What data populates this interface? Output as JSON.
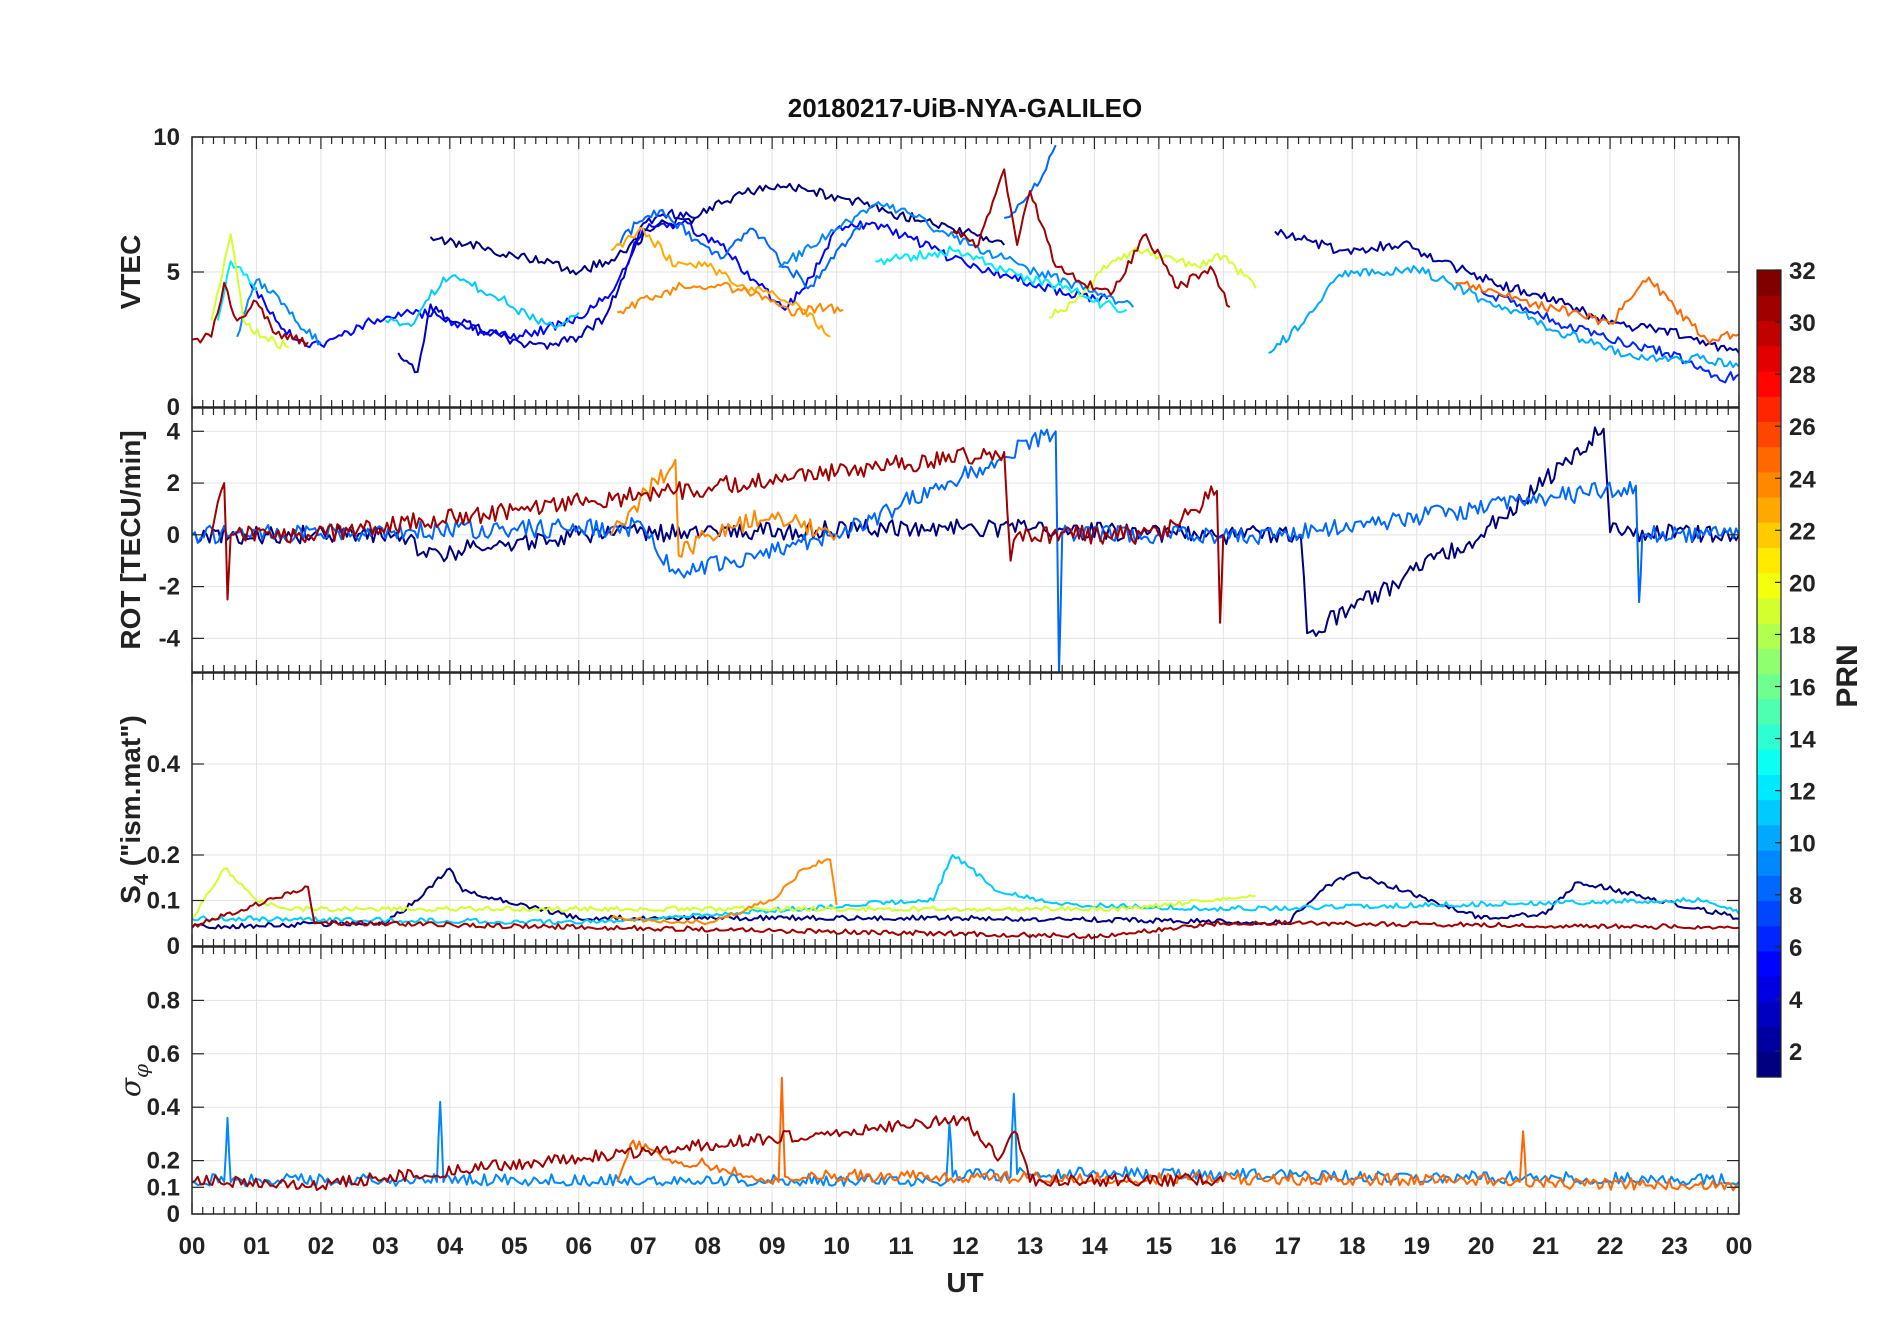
{
  "chart_data": {
    "type": "line",
    "title": "20180217-UiB-NYA-GALILEO",
    "xlabel": "UT",
    "x_ticks": [
      "00",
      "01",
      "02",
      "03",
      "04",
      "05",
      "06",
      "07",
      "08",
      "09",
      "10",
      "11",
      "12",
      "13",
      "14",
      "15",
      "16",
      "17",
      "18",
      "19",
      "20",
      "21",
      "22",
      "23",
      "00"
    ],
    "xlim": [
      0,
      24
    ],
    "colorbar": {
      "label": "PRN",
      "range": [
        1,
        32
      ],
      "ticks": [
        "2",
        "4",
        "6",
        "8",
        "10",
        "12",
        "14",
        "16",
        "18",
        "20",
        "22",
        "24",
        "26",
        "28",
        "30",
        "32"
      ],
      "colormap": "jet"
    },
    "panels": [
      {
        "name": "vtec",
        "ylabel": "VTEC",
        "ylim": [
          0,
          10
        ],
        "y_ticks": [
          0,
          5,
          10
        ],
        "y_tick_labels": [
          "0",
          "5",
          "10"
        ],
        "series": [
          {
            "prn": 1,
            "x": [
              3.7,
              4.5,
              5.2,
              6.0,
              6.6,
              7.2,
              7.8,
              8.4,
              8.9,
              9.6,
              10.2,
              10.8,
              11.4,
              12.0,
              12.6
            ],
            "y": [
              6.3,
              5.9,
              5.5,
              5.0,
              5.6,
              6.7,
              7.0,
              7.8,
              8.2,
              8.0,
              7.7,
              7.2,
              6.9,
              6.5,
              6.0
            ]
          },
          {
            "prn": 2,
            "x": [
              16.8,
              17.3,
              17.8,
              18.3,
              18.8,
              19.3,
              19.8,
              20.3,
              20.8,
              21.3,
              21.8,
              22.3,
              22.8,
              23.3,
              24.0
            ],
            "y": [
              6.5,
              6.2,
              5.8,
              5.9,
              6.1,
              5.4,
              5.0,
              4.5,
              4.2,
              3.8,
              3.3,
              3.0,
              2.9,
              2.5,
              2.0
            ]
          },
          {
            "prn": 3,
            "x": [
              3.2,
              3.5,
              3.7,
              4.0,
              4.4,
              4.8,
              5.2,
              5.6,
              6.0,
              6.4,
              6.7,
              7.0,
              7.4,
              7.8
            ],
            "y": [
              2.0,
              1.3,
              3.8,
              3.2,
              3.0,
              2.6,
              2.3,
              2.3,
              2.6,
              3.3,
              4.8,
              6.8,
              7.2,
              7.0
            ]
          },
          {
            "prn": 5,
            "x": [
              0.9,
              1.3,
              1.6,
              2.0,
              2.6,
              3.2,
              3.8,
              4.3,
              4.9,
              5.5,
              6.0,
              6.5,
              7.0,
              7.6,
              8.2,
              8.8,
              9.2,
              9.6,
              10.0,
              10.6,
              11.2,
              11.8,
              12.4,
              13.0,
              13.6,
              14.2
            ],
            "y": [
              4.6,
              3.2,
              2.5,
              2.3,
              3.0,
              3.5,
              3.4,
              2.9,
              2.6,
              2.9,
              3.3,
              4.2,
              6.6,
              6.8,
              6.0,
              4.5,
              3.6,
              4.8,
              6.6,
              6.8,
              6.2,
              5.5,
              5.0,
              4.6,
              4.2,
              4.0
            ]
          },
          {
            "prn": 6,
            "x": [
              20.0,
              20.6,
              21.2,
              21.8,
              22.4,
              22.9,
              23.4,
              23.7,
              24.0
            ],
            "y": [
              4.3,
              3.8,
              3.1,
              2.7,
              2.3,
              2.0,
              1.5,
              1.0,
              1.2
            ]
          },
          {
            "prn": 8,
            "x": [
              6.6,
              6.9,
              7.3,
              7.8,
              8.2,
              8.7,
              9.2,
              9.6,
              10.0,
              10.4
            ],
            "y": [
              6.0,
              6.8,
              7.3,
              6.2,
              5.5,
              6.6,
              5.2,
              4.5,
              5.8,
              6.8
            ]
          },
          {
            "prn": 8,
            "x": [
              12.6,
              12.9,
              13.2,
              13.4
            ],
            "y": [
              7.0,
              7.6,
              8.6,
              9.7
            ]
          },
          {
            "prn": 9,
            "x": [
              9.1,
              9.6,
              10.1,
              10.6,
              11.1,
              11.6,
              12.1,
              12.6,
              13.1,
              13.6,
              14.1,
              14.6
            ],
            "y": [
              5.2,
              5.9,
              6.8,
              7.5,
              7.2,
              6.5,
              6.0,
              5.5,
              5.0,
              4.6,
              4.2,
              3.7
            ]
          },
          {
            "prn": 9,
            "x": [
              0.7,
              1.0,
              1.3,
              1.6,
              2.0
            ],
            "y": [
              2.6,
              4.7,
              4.2,
              3.2,
              2.4
            ]
          },
          {
            "prn": 10,
            "x": [
              16.7,
              17.2,
              17.8,
              18.4,
              19.0,
              19.5,
              20.0,
              20.6,
              21.2,
              21.8,
              22.4,
              22.9,
              23.4,
              24.0
            ],
            "y": [
              2.0,
              3.0,
              4.9,
              5.0,
              5.1,
              4.6,
              4.0,
              3.5,
              2.8,
              2.4,
              1.8,
              1.7,
              1.8,
              1.5
            ]
          },
          {
            "prn": 11,
            "x": [
              3.0,
              3.4,
              3.9,
              4.3,
              4.8,
              5.2,
              5.6,
              6.0
            ],
            "y": [
              3.2,
              3.0,
              4.8,
              4.6,
              4.0,
              3.4,
              3.0,
              3.5
            ]
          },
          {
            "prn": 12,
            "x": [
              0.4,
              0.6,
              0.8,
              1.0
            ],
            "y": [
              3.2,
              5.4,
              4.9,
              4.3
            ]
          },
          {
            "prn": 12,
            "x": [
              10.6,
              11.2,
              11.8,
              12.4,
              13.0,
              13.6,
              14.0,
              14.5
            ],
            "y": [
              5.4,
              5.6,
              5.8,
              5.3,
              4.7,
              4.4,
              3.9,
              3.6
            ]
          },
          {
            "prn": 19,
            "x": [
              0.3,
              0.6,
              0.8,
              1.1,
              1.5
            ],
            "y": [
              3.2,
              6.4,
              3.2,
              2.6,
              2.2
            ]
          },
          {
            "prn": 19,
            "x": [
              13.3,
              13.7,
              14.1,
              14.6,
              15.1,
              15.6,
              16.0,
              16.5
            ],
            "y": [
              3.3,
              3.9,
              5.0,
              5.8,
              5.6,
              5.2,
              5.6,
              4.4
            ]
          },
          {
            "prn": 23,
            "x": [
              6.5,
              7.0,
              7.5,
              8.0,
              8.5,
              9.0,
              9.5,
              9.9
            ],
            "y": [
              5.8,
              6.6,
              5.2,
              5.2,
              4.5,
              4.3,
              3.6,
              2.6
            ]
          },
          {
            "prn": 24,
            "x": [
              6.6,
              7.1,
              7.6,
              8.2,
              8.8,
              9.3,
              9.7,
              10.1
            ],
            "y": [
              3.5,
              4.0,
              4.5,
              4.5,
              4.2,
              3.4,
              3.7,
              3.6
            ]
          },
          {
            "prn": 25,
            "x": [
              19.6,
              20.2,
              20.8,
              21.4,
              22.0,
              22.6,
              23.0,
              23.5,
              24.0
            ],
            "y": [
              4.6,
              4.3,
              3.8,
              3.5,
              3.1,
              4.8,
              3.7,
              2.5,
              2.7
            ]
          },
          {
            "prn": 31,
            "x": [
              0.0,
              0.3,
              0.5,
              0.7,
              1.0,
              1.3,
              1.8
            ],
            "y": [
              2.5,
              2.6,
              4.6,
              3.2,
              3.9,
              2.7,
              2.4
            ]
          },
          {
            "prn": 31,
            "x": [
              11.8,
              12.2,
              12.6,
              12.8,
              13.0,
              13.4,
              13.8,
              14.3,
              14.8,
              15.3,
              15.8,
              16.1
            ],
            "y": [
              6.5,
              6.0,
              8.8,
              6.0,
              8.0,
              5.2,
              4.6,
              4.3,
              6.4,
              4.4,
              5.2,
              3.7
            ]
          }
        ]
      },
      {
        "name": "rot",
        "ylabel": "ROT [TECU/min]",
        "ylim": [
          -5.3,
          4.9
        ],
        "y_ticks": [
          -4,
          -2,
          0,
          2,
          4
        ],
        "y_tick_labels": [
          "-4",
          "-2",
          "0",
          "2",
          "4"
        ],
        "series": [
          {
            "prn": 1,
            "x": [
              0.0,
              3.4,
              3.5,
              6.0,
              12.0,
              16.0,
              17.2,
              17.3,
              20.0,
              21.9,
              22.0,
              24.0
            ],
            "y": [
              0.0,
              0.0,
              -0.8,
              0.0,
              0.3,
              0.0,
              0.0,
              -3.8,
              0.0,
              4.1,
              0.1,
              0.0
            ]
          },
          {
            "prn": 8,
            "x": [
              0.0,
              7.0,
              7.5,
              10.0,
              13.4,
              13.45,
              13.5,
              17.0,
              22.4,
              22.45,
              22.5,
              24.0
            ],
            "y": [
              0.0,
              0.3,
              -1.5,
              0.0,
              4.0,
              -5.3,
              0.0,
              0.0,
              1.9,
              -2.6,
              0.0,
              0.0
            ]
          },
          {
            "prn": 24,
            "x": [
              6.5,
              7.5,
              7.55,
              8.0,
              9.0,
              10.0
            ],
            "y": [
              0.0,
              2.9,
              -0.8,
              0.0,
              0.8,
              0.0
            ]
          },
          {
            "prn": 31,
            "x": [
              0.3,
              0.5,
              0.55,
              0.6,
              1.8,
              12.6,
              12.7,
              12.8,
              15.0,
              15.9,
              15.95,
              16.0
            ],
            "y": [
              0.0,
              2.0,
              -2.5,
              0.0,
              0.0,
              3.2,
              -1.0,
              0.0,
              0.0,
              1.7,
              -3.4,
              0.0
            ]
          }
        ]
      },
      {
        "name": "s4",
        "ylabel": "S4 (\"ism.mat\")",
        "ylim": [
          0,
          0.6
        ],
        "y_ticks": [
          0,
          0.1,
          0.2,
          0.4
        ],
        "y_tick_labels": [
          "0",
          "0.1",
          "0.2",
          "0.4"
        ],
        "series": [
          {
            "prn": 1,
            "x": [
              0.0,
              3.0,
              3.5,
              4.0,
              4.2,
              6.0,
              12.0,
              17.0,
              17.5,
              18.0,
              20.0,
              21.0,
              21.5,
              24.0
            ],
            "y": [
              0.04,
              0.05,
              0.1,
              0.17,
              0.12,
              0.06,
              0.06,
              0.05,
              0.12,
              0.16,
              0.06,
              0.07,
              0.14,
              0.06
            ]
          },
          {
            "prn": 11,
            "x": [
              0.0,
              6.0,
              11.5,
              11.8,
              12.5,
              13.5,
              16.0,
              23.5,
              24.0
            ],
            "y": [
              0.06,
              0.05,
              0.1,
              0.2,
              0.12,
              0.09,
              0.08,
              0.1,
              0.07
            ]
          },
          {
            "prn": 19,
            "x": [
              0.0,
              0.5,
              1.0,
              1.5,
              14.5,
              16.5
            ],
            "y": [
              0.06,
              0.17,
              0.1,
              0.08,
              0.08,
              0.11
            ]
          },
          {
            "prn": 24,
            "x": [
              6.5,
              8.0,
              9.0,
              9.5,
              9.9,
              10.0
            ],
            "y": [
              0.06,
              0.05,
              0.1,
              0.17,
              0.19,
              0.09
            ]
          },
          {
            "prn": 31,
            "x": [
              0.0,
              1.8,
              1.9,
              6.0,
              14.0,
              16.0,
              24.0
            ],
            "y": [
              0.04,
              0.13,
              0.05,
              0.04,
              0.02,
              0.05,
              0.04
            ]
          }
        ]
      },
      {
        "name": "sigma_phi",
        "ylabel": "σφ",
        "ylim": [
          0,
          1.0
        ],
        "y_ticks": [
          0,
          0.1,
          0.2,
          0.4,
          0.6,
          0.8
        ],
        "y_tick_labels": [
          "0",
          "0.1",
          "0.2",
          "0.4",
          "0.6",
          "0.8"
        ],
        "series": [
          {
            "prn": 9,
            "x": [
              0.0,
              0.5,
              0.55,
              0.6,
              3.8,
              3.85,
              3.9,
              11.7,
              11.75,
              11.8,
              12.7,
              12.75,
              12.8,
              24.0
            ],
            "y": [
              0.12,
              0.12,
              0.36,
              0.12,
              0.12,
              0.42,
              0.12,
              0.12,
              0.34,
              0.14,
              0.14,
              0.45,
              0.15,
              0.12
            ]
          },
          {
            "prn": 25,
            "x": [
              6.6,
              6.8,
              7.5,
              9.1,
              9.15,
              9.2,
              12.0,
              20.6,
              20.65,
              20.7,
              24.0
            ],
            "y": [
              0.12,
              0.26,
              0.2,
              0.12,
              0.51,
              0.14,
              0.13,
              0.12,
              0.31,
              0.11,
              0.1
            ]
          },
          {
            "prn": 31,
            "x": [
              0.0,
              1.8,
              12.0,
              12.5,
              12.8,
              13.0,
              16.0
            ],
            "y": [
              0.12,
              0.1,
              0.35,
              0.2,
              0.3,
              0.12,
              0.12
            ]
          }
        ]
      }
    ]
  }
}
